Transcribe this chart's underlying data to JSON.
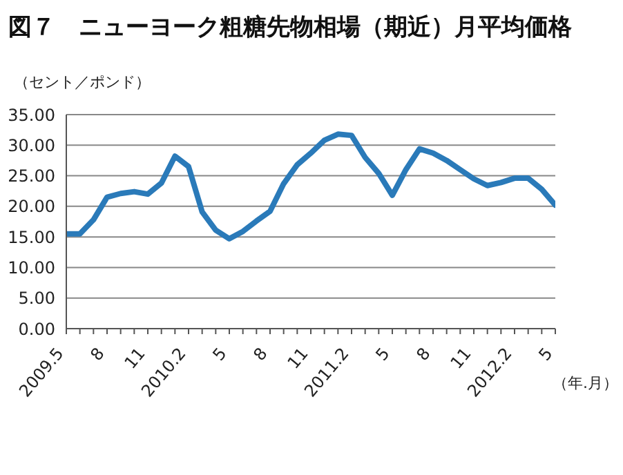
{
  "chart_data": {
    "type": "line",
    "title": "図７　ニューヨーク粗糖先物相場（期近）月平均価格",
    "ylabel": "（セント／ポンド）",
    "xlabel": "（年.月）",
    "categories": [
      "2009.5",
      null,
      null,
      "8",
      null,
      null,
      "11",
      null,
      null,
      "2010.2",
      null,
      null,
      "5",
      null,
      null,
      "8",
      null,
      null,
      "11",
      null,
      null,
      "2011.2",
      null,
      null,
      "5",
      null,
      null,
      "8",
      null,
      null,
      "11",
      null,
      null,
      "2012.2",
      null,
      null,
      "5"
    ],
    "series": [
      {
        "color": "#2a7ab9",
        "values": [
          15.5,
          15.5,
          17.8,
          21.5,
          22.1,
          22.4,
          22.0,
          23.8,
          28.2,
          26.5,
          19.1,
          16.1,
          14.7,
          15.9,
          17.6,
          19.2,
          23.7,
          26.8,
          28.7,
          30.8,
          31.8,
          31.6,
          28.0,
          25.4,
          21.8,
          26.0,
          29.4,
          28.7,
          27.5,
          26.0,
          24.5,
          23.4,
          23.9,
          24.6,
          24.6,
          22.8,
          20.2
        ]
      }
    ],
    "ylim": [
      0,
      35
    ],
    "yticks": [
      {
        "value": 0,
        "label": "0.00"
      },
      {
        "value": 5,
        "label": "5.00"
      },
      {
        "value": 10,
        "label": "10.00"
      },
      {
        "value": 15,
        "label": "15.00"
      },
      {
        "value": 20,
        "label": "20.00"
      },
      {
        "value": 25,
        "label": "25.00"
      },
      {
        "value": 30,
        "label": "30.00"
      },
      {
        "value": 35,
        "label": "35.00"
      }
    ],
    "grid": "y",
    "marker": "none",
    "line_style": "solid",
    "legend": false
  }
}
